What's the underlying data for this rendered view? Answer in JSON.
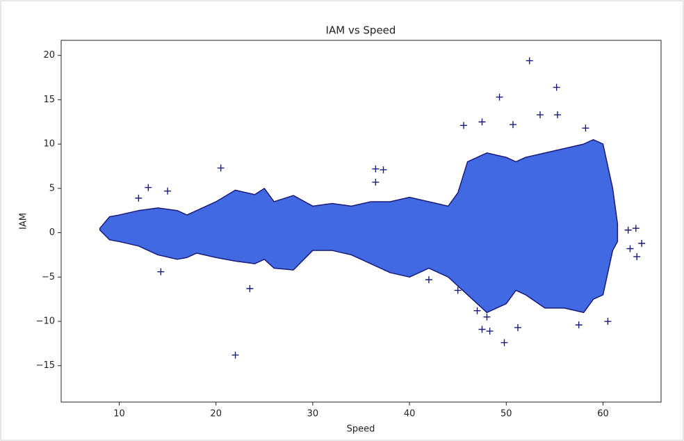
{
  "chart_data": {
    "type": "scatter",
    "title": "IAM vs Speed",
    "x_label": "Speed",
    "y_label": "IAM",
    "xlim": [
      4,
      66
    ],
    "ylim": [
      -19.1,
      21.7
    ],
    "xticks": [
      10,
      20,
      30,
      40,
      50,
      60
    ],
    "yticks": [
      {
        "value": -15,
        "label": "−15"
      },
      {
        "value": -10,
        "label": "−10"
      },
      {
        "value": -5,
        "label": "−5"
      },
      0,
      5,
      10,
      15,
      20
    ],
    "fill_color": "#4169e1",
    "marker_color": "#1a1a7a",
    "envelope": {
      "x": [
        8,
        9,
        10,
        12,
        14,
        16,
        17,
        18,
        20,
        22,
        24,
        25,
        26,
        28,
        30,
        32,
        34,
        36,
        38,
        40,
        42,
        44,
        45,
        46,
        48,
        50,
        51,
        52,
        54,
        56,
        58,
        59,
        60,
        61,
        61.5
      ],
      "upper": [
        0.5,
        1.8,
        2.0,
        2.5,
        2.8,
        2.5,
        2,
        2.5,
        3.5,
        4.8,
        4.3,
        5,
        3.5,
        4.2,
        3,
        3.3,
        3,
        3.5,
        3.5,
        4,
        3.5,
        3,
        4.5,
        8,
        9,
        8.5,
        8,
        8.5,
        9,
        9.5,
        10,
        10.5,
        10,
        5,
        1
      ],
      "lower": [
        0.3,
        -0.8,
        -1.0,
        -1.5,
        -2.5,
        -3,
        -2.8,
        -2.3,
        -2.8,
        -3.2,
        -3.5,
        -3,
        -4,
        -4.2,
        -2,
        -2,
        -2.5,
        -3.5,
        -4.5,
        -5,
        -4,
        -5,
        -6,
        -7,
        -9,
        -8,
        -6.5,
        -7,
        -8.5,
        -8.5,
        -9,
        -7.5,
        -7,
        -2,
        -1
      ]
    },
    "points": {
      "x": [
        22,
        52.4,
        55.2,
        49.3,
        53.5,
        55.3,
        23.5,
        14.3,
        20.5,
        36.5,
        37.3,
        36.5,
        49.8,
        51.2,
        48.3,
        57.5,
        47.5,
        13,
        15,
        12,
        45.6,
        47.5,
        50.7,
        58.2,
        62.6,
        63.4,
        64,
        63.5,
        62.8,
        60.5,
        45,
        42,
        48,
        47
      ],
      "y": [
        -13.8,
        19.4,
        16.4,
        15.3,
        13.3,
        13.3,
        -6.3,
        -4.4,
        7.3,
        7.2,
        7.1,
        5.7,
        -12.4,
        -10.7,
        -11.1,
        -10.4,
        -10.9,
        5.1,
        4.7,
        3.9,
        12.1,
        12.5,
        12.2,
        11.8,
        0.3,
        0.5,
        -1.2,
        -2.7,
        -1.8,
        -10,
        -6.5,
        -5.3,
        -9.5,
        -8.8
      ]
    }
  }
}
